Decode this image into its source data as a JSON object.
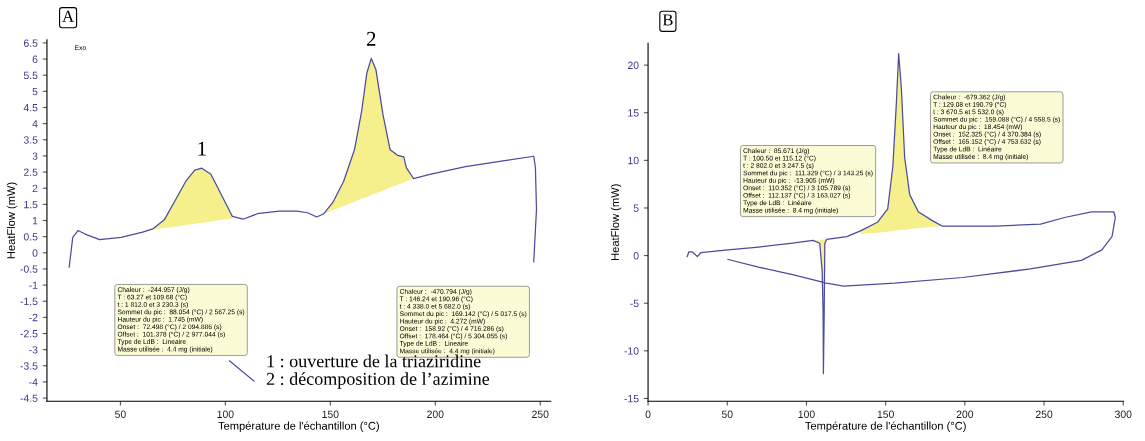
{
  "chart_data": [
    {
      "type": "line",
      "title": "A",
      "xlabel": "Température de l'échantillon (°C)",
      "ylabel": "HeatFlow (mW)",
      "xlim": [
        15,
        255
      ],
      "xticks": [
        50,
        100,
        150,
        200,
        250
      ],
      "ylim": [
        -4.6,
        6.6
      ],
      "yticks": [
        -4.5,
        -4,
        -3.5,
        -3,
        -2.5,
        -2,
        -1.5,
        -1,
        -0.5,
        0,
        0.5,
        1,
        1.5,
        2,
        2.5,
        3,
        3.5,
        4,
        4.5,
        5,
        5.5,
        6,
        6.5
      ],
      "grid": false,
      "marker": "none",
      "line_style": "solid",
      "series": [
        {
          "color": "#4b4ba0",
          "x": [
            25.6,
            27.3,
            29.8,
            33.2,
            40.1,
            50.3,
            60.6,
            65.7,
            70.9,
            76,
            81.1,
            85.4,
            88.8,
            93.1,
            98.2,
            103.3,
            108.5,
            115.3,
            125.6,
            134.1,
            139.2,
            143.5,
            146.9,
            151.2,
            156.3,
            161.5,
            164.9,
            167.4,
            169.5,
            171.7,
            175.1,
            178.5,
            182,
            185,
            186.2,
            189.6,
            197.4,
            214.4,
            231.5,
            246.9,
            247.7,
            248.2,
            246.9,
            241.8,
            238.4,
            200,
            113.6,
            102
          ],
          "values": [
            -0.44,
            0.48,
            0.69,
            0.58,
            0.41,
            0.48,
            0.64,
            0.75,
            1.02,
            1.61,
            2.21,
            2.56,
            2.62,
            2.43,
            1.78,
            1.13,
            1.04,
            1.21,
            1.29,
            1.29,
            1.24,
            1.11,
            1.21,
            1.56,
            2.21,
            3.19,
            4.38,
            5.57,
            6.02,
            5.68,
            4.27,
            3.19,
            3.02,
            2.97,
            2.64,
            2.3,
            2.43,
            2.67,
            2.84,
            2.99,
            2.64,
            1.34,
            -0.28,
            null,
            null,
            null,
            -3.97,
            -3.35
          ],
          "lower": [
            null,
            null,
            null,
            null,
            null,
            null,
            null,
            0.72,
            0.77,
            0.81,
            0.86,
            0.9,
            0.93,
            0.97,
            1.02,
            1.06,
            null,
            null,
            null,
            null,
            null,
            null,
            1.21,
            1.32,
            1.45,
            1.58,
            1.67,
            1.73,
            1.79,
            1.84,
            1.93,
            2.02,
            2.11,
            2.18,
            2.21,
            2.3,
            null,
            null,
            null,
            null,
            null,
            null,
            null,
            null,
            null,
            null,
            null,
            null
          ],
          "upper": [
            null,
            null,
            null,
            null,
            null,
            null,
            null,
            0.75,
            1.02,
            1.61,
            2.21,
            2.56,
            2.62,
            2.43,
            1.78,
            1.13,
            null,
            null,
            null,
            null,
            null,
            null,
            1.21,
            1.56,
            2.21,
            3.19,
            4.38,
            5.57,
            6.02,
            5.68,
            4.27,
            3.19,
            3.02,
            2.97,
            2.64,
            2.3,
            null,
            null,
            null,
            null,
            null,
            null,
            null,
            null,
            null,
            null,
            null,
            null
          ]
        }
      ],
      "annotations": [
        "Chaleur :  -244.957 (J/g)\nT : 63.27 et 109.68 (°C)\nt : 1 812.0 et 3 230.3 (s)\nSommet du pic :  88.054 (°C) / 2 567.25 (s)\nHauteur du pic :  1.745 (mW)\nOnset :  72.498 (°C) / 2 094.886 (s)\nOffset :  101.378 (°C) / 2 977.044 (s)\nType de LdB :  Lineaire\nMasse utilisée :  4.4 mg (initiale)",
        "Chaleur :  -470.794 (J/g)\nT : 146.24 et 190.96 (°C)\nt : 4 338.0 et 5 682.0 (s)\nSommet du pic :  169.142 (°C) / 5 017.5 (s)\nHauteur du pic :  4.272 (mW)\nOnset :  158.92 (°C) / 4 716.286 (s)\nOffset :  178.464 (°C) / 5 304.055 (s)\nType de LdB :  Lineaire\nMasse utilisée :  4.4 mg (initiale)",
        "1 : ouverture de la triaziridine\n2 : décomposition de l’azimine",
        "Exo",
        {
          "text": "1",
          "x": 88.8,
          "y": 2.62
        },
        {
          "text": "2",
          "x": 169.5,
          "y": 6.02
        }
      ]
    },
    {
      "type": "line",
      "title": "B",
      "xlabel": "Température de l'échantillon (°C)",
      "ylabel": "HeatFlow (mW)",
      "xlim": [
        0,
        300
      ],
      "xticks": [
        0,
        50,
        100,
        150,
        200,
        250,
        300
      ],
      "ylim": [
        -15.3,
        22.3
      ],
      "yticks": [
        -15,
        -10,
        -5,
        0,
        5,
        10,
        15,
        20
      ],
      "grid": false,
      "marker": "none",
      "line_style": "solid",
      "series": [
        {
          "color": "#4b4ba0",
          "x": [
            24.7,
            25.8,
            27.9,
            31.1,
            33.3,
            50.4,
            69.7,
            91.2,
            104.1,
            108.4,
            109.9,
            110.5,
            110.7,
            111.2,
            111.6,
            112.7,
            125.5,
            134.1,
            144.8,
            151.3,
            154.5,
            156.7,
            158.2,
            159.9,
            162.0,
            165.2,
            170.6,
            179.2,
            185.6,
            198.5,
            220,
            247.8,
            262.9,
            280,
            294,
            295,
            292.9,
            286.5,
            273.6,
            241.4,
            198.5,
            155.6,
            123.4,
            112.7,
            91.2,
            69.7,
            50.4
          ],
          "values": [
            -0.1,
            0.4,
            0.4,
            -0.1,
            0.3,
            0.6,
            0.9,
            1.3,
            1.6,
            1.3,
            -1.6,
            -5.9,
            -12.4,
            -5.9,
            1.3,
            1.7,
            2.0,
            2.6,
            3.5,
            4.9,
            9.3,
            15.8,
            21.2,
            17.6,
            10.3,
            6.4,
            4.6,
            3.7,
            3.1,
            3.1,
            3.1,
            3.3,
            4.0,
            4.6,
            4.6,
            4.0,
            2.0,
            0.6,
            -0.5,
            -1.4,
            -2.3,
            -2.9,
            -3.2,
            -2.9,
            -2.0,
            -1.2,
            -0.4
          ],
          "lower": [
            null,
            null,
            null,
            null,
            null,
            null,
            null,
            null,
            1.6,
            1.6,
            1.7,
            1.7,
            1.7,
            1.7,
            1.7,
            1.7,
            null,
            2.3,
            2.4,
            2.5,
            2.6,
            2.6,
            2.7,
            2.7,
            2.7,
            2.8,
            2.9,
            3.0,
            3.1,
            null,
            null,
            null,
            null,
            null,
            null,
            null,
            null,
            null,
            null,
            null,
            null,
            null,
            null,
            null,
            null,
            null,
            null
          ],
          "upper": [
            null,
            null,
            null,
            null,
            null,
            null,
            null,
            null,
            1.6,
            1.3,
            -1.6,
            -5.9,
            -12.4,
            -5.9,
            1.3,
            1.7,
            null,
            2.6,
            3.5,
            4.9,
            9.3,
            15.8,
            21.2,
            17.6,
            10.3,
            6.4,
            4.6,
            3.7,
            3.1,
            null,
            null,
            null,
            null,
            null,
            null,
            null,
            null,
            null,
            null,
            null,
            null,
            null,
            null,
            null,
            null,
            null,
            null
          ]
        }
      ],
      "annotations": [
        "Chaleur :  85.671 (J/g)\nT : 100.50 et 115.12 (°C)\nt : 2 802.0 et 3 247.5 (s)\nSommet du pic :  111.329 (°C) / 3 143.25 (s)\nHauteur du pic :  -13.905 (mW)\nOnset :  110.352 (°C) / 3 105.789 (s)\nOffset :  112.137 (°C) / 3 163.027 (s)\nType de LdB :  Linéaire\nMasse utilisée :  8.4 mg (initiale)",
        "Chaleur :  -679.362 (J/g)\nT : 129.08 et 190.79 (°C)\nt : 3 670.5 et 5 532.0 (s)\nSommet du pic :  159.088 (°C) / 4 558.5 (s)\nHauteur du pic :  18.454 (mW)\nOnset :  152.325 (°C) / 4 370.384 (s)\nOffset :  165.152 (°C) / 4 753.632 (s)\nType de LdB :  Linéaire\nMasse utilisée :  8.4 mg (initiale)"
      ]
    }
  ]
}
